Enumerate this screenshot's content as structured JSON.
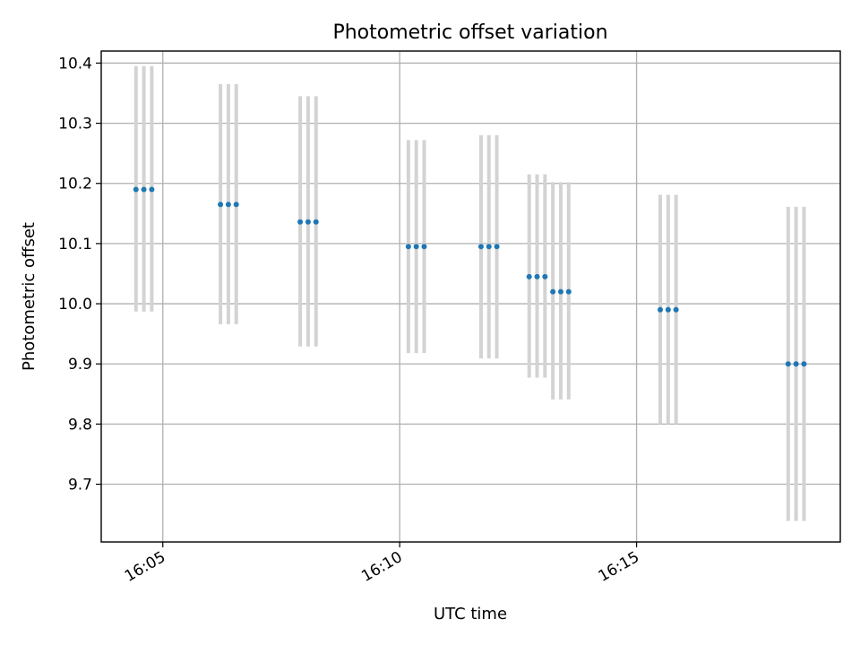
{
  "chart_data": {
    "type": "scatter",
    "title": "Photometric offset variation",
    "xlabel": "UTC time",
    "ylabel": "Photometric offset",
    "x_ticks": [
      "16:05",
      "16:10",
      "16:15"
    ],
    "y_ticks": [
      "9.7",
      "9.8",
      "9.9",
      "10.0",
      "10.1",
      "10.2",
      "10.3",
      "10.4"
    ],
    "xlim": [
      "16:03:42",
      "16:19:18"
    ],
    "ylim": [
      9.604,
      10.42
    ],
    "grid": true,
    "colors": {
      "points": "#1f77b4",
      "error_bars": "#d3d3d3"
    },
    "x": [
      "16:04:26",
      "16:04:36",
      "16:04:46",
      "16:06:13",
      "16:06:23",
      "16:06:33",
      "16:07:54",
      "16:08:04",
      "16:08:14",
      "16:10:11",
      "16:10:21",
      "16:10:31",
      "16:11:43",
      "16:11:53",
      "16:12:03",
      "16:12:44",
      "16:12:54",
      "16:13:04",
      "16:13:14",
      "16:13:24",
      "16:13:34",
      "16:15:30",
      "16:15:40",
      "16:15:50",
      "16:18:12",
      "16:18:22",
      "16:18:32"
    ],
    "y": [
      10.19,
      10.19,
      10.19,
      10.165,
      10.165,
      10.165,
      10.136,
      10.136,
      10.136,
      10.095,
      10.095,
      10.095,
      10.095,
      10.095,
      10.095,
      10.045,
      10.045,
      10.045,
      10.02,
      10.02,
      10.02,
      9.99,
      9.99,
      9.99,
      9.9,
      9.9,
      9.9
    ],
    "y_lower": [
      9.987,
      9.987,
      9.987,
      9.966,
      9.966,
      9.966,
      9.929,
      9.929,
      9.929,
      9.918,
      9.918,
      9.918,
      9.909,
      9.909,
      9.909,
      9.877,
      9.877,
      9.877,
      9.841,
      9.841,
      9.841,
      9.8,
      9.8,
      9.8,
      9.639,
      9.639,
      9.639
    ],
    "y_upper": [
      10.395,
      10.395,
      10.395,
      10.365,
      10.365,
      10.365,
      10.345,
      10.345,
      10.345,
      10.272,
      10.272,
      10.272,
      10.28,
      10.28,
      10.28,
      10.215,
      10.215,
      10.215,
      10.202,
      10.202,
      10.202,
      10.181,
      10.181,
      10.181,
      10.161,
      10.161,
      10.161
    ]
  }
}
